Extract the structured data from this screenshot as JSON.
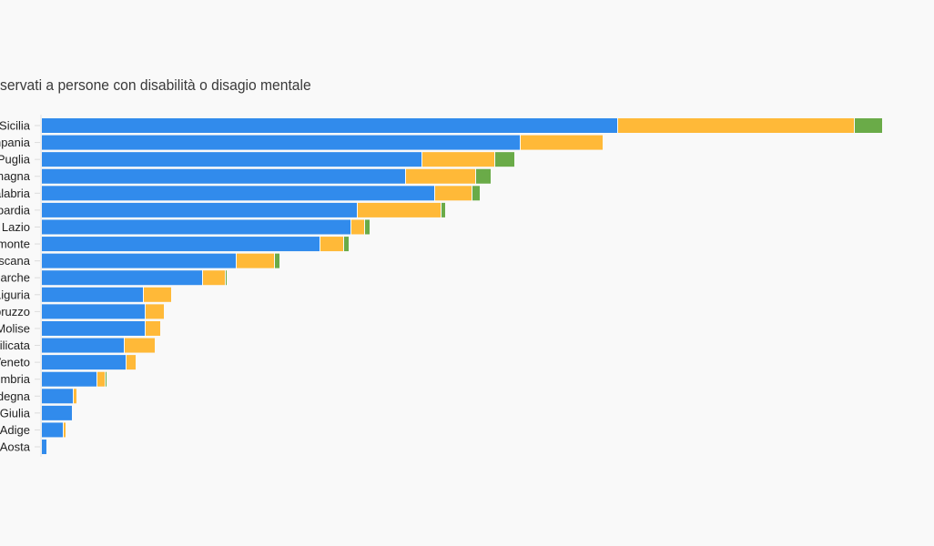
{
  "chart_data": {
    "type": "bar",
    "orientation": "horizontal",
    "stacked": true,
    "title": "servati a persone con disabilità o disagio mentale",
    "categories": [
      "Sicilia",
      "mpania",
      "Puglia",
      "magna",
      "alabria",
      "bardia",
      "Lazio",
      "monte",
      "oscana",
      "Marche",
      "Liguria",
      "bruzzo",
      "Molise",
      "silicata",
      "Veneto",
      "Umbria",
      "degna",
      "Giulia",
      "Adige",
      "'Aosta"
    ],
    "series": [
      {
        "name": "series-1",
        "color": "#318bec",
        "values": [
          632,
          525,
          417,
          399,
          431,
          346,
          339,
          305,
          213,
          176,
          111,
          113,
          113,
          90,
          92,
          60,
          34,
          33,
          23,
          5
        ]
      },
      {
        "name": "series-2",
        "color": "#ffb938",
        "values": [
          259,
          90,
          79,
          76,
          40,
          91,
          14,
          25,
          41,
          24,
          30,
          20,
          16,
          33,
          10,
          8,
          3,
          0,
          2,
          0
        ]
      },
      {
        "name": "series-3",
        "color": "#6aab48",
        "values": [
          30,
          0,
          21,
          16,
          8,
          4,
          5,
          5,
          5,
          1,
          0,
          0,
          0,
          0,
          0,
          1,
          0,
          0,
          0,
          0
        ]
      }
    ],
    "xlim": [
      0,
      1000
    ],
    "grid": false,
    "legend": "none"
  }
}
